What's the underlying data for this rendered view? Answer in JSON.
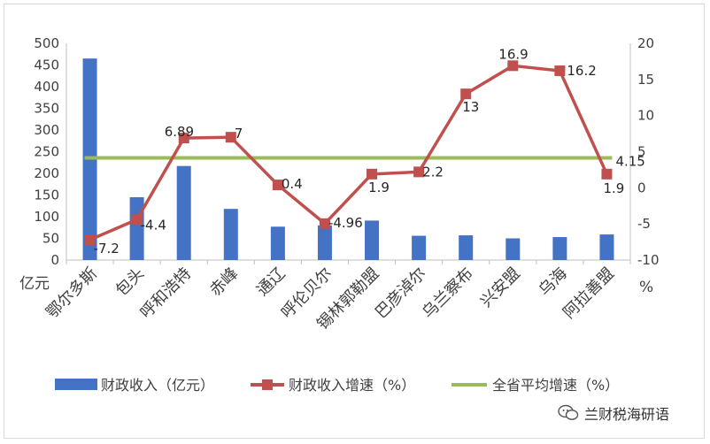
{
  "chart_data": {
    "type": "bar-line",
    "categories": [
      "鄂尔多斯",
      "包头",
      "呼和浩特",
      "赤峰",
      "通辽",
      "呼伦贝尔",
      "锡林郭勒盟",
      "巴彦淖尔",
      "乌兰察布",
      "兴安盟",
      "乌海",
      "阿拉善盟"
    ],
    "series": [
      {
        "name": "财政收入（亿元）",
        "type": "bar",
        "axis": "left",
        "color": "#4472c4",
        "values": [
          465,
          145,
          217,
          118,
          77,
          80,
          91,
          56,
          57,
          50,
          53,
          59
        ]
      },
      {
        "name": "财政收入增速（%）",
        "type": "line",
        "axis": "right",
        "color": "#c0504d",
        "values": [
          -7.2,
          -4.4,
          6.89,
          7,
          0.4,
          -4.96,
          1.9,
          2.2,
          13,
          16.9,
          16.2,
          1.9
        ],
        "labels": [
          "-7.2",
          "-4.4",
          "6.89",
          "7",
          "0.4",
          "-4.96",
          "1.9",
          "2.2",
          "13",
          "16.9",
          "16.2",
          "1.9"
        ]
      },
      {
        "name": "全省平均增速（%）",
        "type": "line",
        "axis": "right",
        "color": "#9bbb59",
        "value": 4.15,
        "label": "4.15"
      }
    ],
    "y_left": {
      "min": 0,
      "max": 500,
      "step": 50,
      "unit": "亿元",
      "ticks": [
        "0",
        "50",
        "100",
        "150",
        "200",
        "250",
        "300",
        "350",
        "400",
        "450",
        "500"
      ]
    },
    "y_right": {
      "min": -10,
      "max": 20,
      "step": 5,
      "unit": "%",
      "ticks": [
        "-10",
        "-5",
        "0",
        "5",
        "10",
        "15",
        "20"
      ]
    },
    "legend_position": "bottom"
  },
  "watermark": {
    "text": "兰财税海研语",
    "icon": "wechat-icon"
  }
}
